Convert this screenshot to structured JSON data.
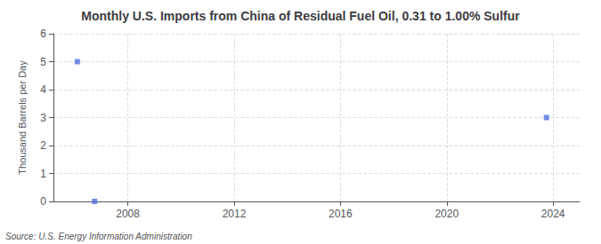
{
  "chart_data": {
    "type": "scatter",
    "title": "Monthly U.S. Imports from China of Residual Fuel Oil, 0.31 to 1.00% Sulfur",
    "ylabel": "Thousand Barrels per Day",
    "annotations": [
      "Source: U.S. Energy Information Administration"
    ],
    "x": [
      2006.1,
      2006.75,
      2023.75
    ],
    "values": [
      5.0,
      0.0,
      3.0
    ],
    "marker": "square",
    "xlim": [
      2005.2,
      2025.0
    ],
    "ylim": [
      0,
      6
    ],
    "xticks": [
      2008,
      2012,
      2016,
      2020,
      2024
    ],
    "yticks": [
      0,
      1,
      2,
      3,
      4,
      5,
      6
    ],
    "grid": true
  }
}
